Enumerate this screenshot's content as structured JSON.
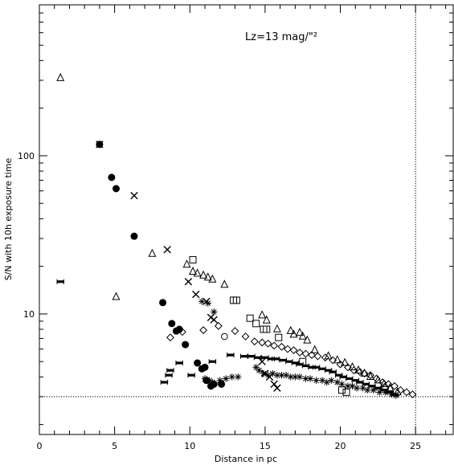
{
  "chart_data": {
    "type": "scatter",
    "title": "",
    "xlabel": "Distance in pc",
    "ylabel": "S/N with 10h exposure time",
    "xlim": [
      0,
      27.5
    ],
    "ylim": [
      1.73,
      900
    ],
    "yscale": "log",
    "grid": false,
    "legend": "none",
    "x_ticks": [
      0,
      5,
      10,
      15,
      20,
      25
    ],
    "x_tick_labels": [
      "0",
      "5",
      "10",
      "15",
      "20",
      "25"
    ],
    "y_major_ticks": [
      10,
      100
    ],
    "y_tick_labels": [
      "10",
      "100"
    ],
    "annotation": "Lz=13 mag/\"²",
    "reference_lines": {
      "vertical_x": 25,
      "horizontal_y": 3.0
    },
    "series": [
      {
        "marker": "triangle",
        "points": [
          [
            1.4,
            310
          ],
          [
            5.1,
            12.8
          ],
          [
            7.5,
            24
          ],
          [
            9.8,
            20.5
          ],
          [
            10.2,
            18.5
          ],
          [
            10.5,
            18
          ],
          [
            10.9,
            17.5
          ],
          [
            11.2,
            17
          ],
          [
            11.5,
            16.5
          ],
          [
            12.3,
            15.3
          ],
          [
            14.8,
            9.8
          ],
          [
            15.1,
            9.1
          ],
          [
            15.8,
            8
          ],
          [
            16.7,
            7.8
          ],
          [
            16.9,
            7.4
          ],
          [
            17.3,
            7.6
          ],
          [
            17.5,
            7.2
          ],
          [
            17.8,
            6.8
          ],
          [
            18.3,
            5.9
          ],
          [
            19.2,
            5.4
          ],
          [
            19.8,
            5.1
          ],
          [
            20.3,
            4.9
          ],
          [
            20.8,
            4.6
          ],
          [
            21.2,
            4.4
          ],
          [
            21.6,
            4.2
          ],
          [
            22.0,
            4.0
          ],
          [
            22.5,
            3.8
          ],
          [
            22.9,
            3.6
          ],
          [
            23.3,
            3.4
          ],
          [
            23.8,
            3.2
          ]
        ]
      },
      {
        "marker": "x",
        "points": [
          [
            4.0,
            118
          ],
          [
            6.3,
            56
          ],
          [
            8.5,
            25.5
          ],
          [
            9.9,
            16
          ],
          [
            10.4,
            13.3
          ],
          [
            11.1,
            12
          ],
          [
            11.4,
            9.5
          ],
          [
            11.6,
            9.2
          ],
          [
            14.8,
            5
          ],
          [
            15.0,
            4.2
          ],
          [
            15.3,
            4.0
          ],
          [
            15.6,
            3.6
          ],
          [
            15.8,
            3.4
          ]
        ]
      },
      {
        "marker": "circle-filled",
        "points": [
          [
            4.0,
            118
          ],
          [
            4.8,
            73
          ],
          [
            5.1,
            62
          ],
          [
            6.3,
            31
          ],
          [
            8.2,
            11.8
          ],
          [
            8.8,
            8.7
          ],
          [
            9.1,
            7.8
          ],
          [
            9.3,
            8
          ],
          [
            9.7,
            6.4
          ],
          [
            10.5,
            4.9
          ],
          [
            10.8,
            4.5
          ],
          [
            11.0,
            4.6
          ],
          [
            11.1,
            3.8
          ],
          [
            11.4,
            3.5
          ],
          [
            11.6,
            3.6
          ],
          [
            12.1,
            3.6
          ]
        ]
      },
      {
        "marker": "square",
        "points": [
          [
            10.2,
            22
          ],
          [
            12.9,
            12.2
          ],
          [
            13.1,
            12.2
          ],
          [
            14.0,
            9.4
          ],
          [
            14.4,
            8.7
          ],
          [
            14.9,
            8
          ],
          [
            15.1,
            8
          ],
          [
            15.9,
            7.1
          ],
          [
            17.5,
            5
          ],
          [
            20.1,
            3.3
          ],
          [
            20.4,
            3.2
          ]
        ]
      },
      {
        "marker": "diamond",
        "points": [
          [
            8.7,
            7.1
          ],
          [
            9.5,
            7.7
          ],
          [
            10.9,
            7.9
          ],
          [
            11.9,
            8.4
          ],
          [
            13.0,
            7.8
          ],
          [
            13.7,
            7.2
          ],
          [
            14.3,
            6.7
          ],
          [
            14.8,
            6.6
          ],
          [
            15.2,
            6.5
          ],
          [
            15.6,
            6.3
          ],
          [
            16.1,
            6.2
          ],
          [
            16.5,
            6.0
          ],
          [
            16.9,
            5.9
          ],
          [
            17.3,
            5.7
          ],
          [
            17.7,
            5.6
          ],
          [
            18.1,
            5.5
          ],
          [
            18.5,
            5.4
          ],
          [
            19.0,
            5.3
          ],
          [
            19.5,
            5.1
          ],
          [
            20.0,
            4.8
          ],
          [
            20.5,
            4.6
          ],
          [
            20.9,
            4.4
          ],
          [
            21.3,
            4.3
          ],
          [
            21.6,
            4.2
          ],
          [
            22.0,
            4.1
          ],
          [
            22.4,
            3.9
          ],
          [
            22.8,
            3.7
          ],
          [
            23.2,
            3.6
          ],
          [
            23.6,
            3.5
          ],
          [
            24.0,
            3.3
          ],
          [
            24.4,
            3.2
          ],
          [
            24.8,
            3.1
          ]
        ]
      },
      {
        "marker": "circle-open",
        "points": [
          [
            12.3,
            7.2
          ],
          [
            23.0,
            3.4
          ]
        ]
      },
      {
        "marker": "double-bar",
        "points": [
          [
            1.4,
            16
          ],
          [
            8.3,
            3.7
          ],
          [
            8.6,
            4.1
          ],
          [
            8.7,
            4.4
          ],
          [
            9.3,
            4.9
          ],
          [
            10.1,
            4.1
          ],
          [
            11.5,
            5
          ],
          [
            12.7,
            5.5
          ],
          [
            13.6,
            5.4
          ],
          [
            14.1,
            5.4
          ],
          [
            14.5,
            5.3
          ],
          [
            15.0,
            5.3
          ],
          [
            15.4,
            5.2
          ],
          [
            15.7,
            5.2
          ],
          [
            16.2,
            5.1
          ],
          [
            16.6,
            5.0
          ],
          [
            17.0,
            4.9
          ],
          [
            17.3,
            4.8
          ],
          [
            17.7,
            4.7
          ],
          [
            18.1,
            4.6
          ],
          [
            18.4,
            4.6
          ],
          [
            18.8,
            4.5
          ],
          [
            19.2,
            4.4
          ],
          [
            19.5,
            4.3
          ],
          [
            19.9,
            4.1
          ],
          [
            20.2,
            4.0
          ],
          [
            20.6,
            3.9
          ],
          [
            21.0,
            3.8
          ],
          [
            21.3,
            3.7
          ],
          [
            21.7,
            3.6
          ],
          [
            22.1,
            3.5
          ],
          [
            22.5,
            3.4
          ],
          [
            22.9,
            3.3
          ],
          [
            23.3,
            3.2
          ],
          [
            23.6,
            3.1
          ]
        ]
      },
      {
        "marker": "asterisk",
        "points": [
          [
            10.8,
            12
          ],
          [
            11.2,
            11.7
          ],
          [
            11.6,
            10.3
          ],
          [
            11.0,
            3.9
          ],
          [
            11.3,
            3.8
          ],
          [
            11.5,
            3.7
          ],
          [
            12.0,
            3.8
          ],
          [
            12.4,
            3.9
          ],
          [
            12.8,
            4.0
          ],
          [
            13.2,
            4.0
          ],
          [
            14.4,
            4.6
          ],
          [
            14.6,
            4.4
          ],
          [
            14.9,
            4.2
          ],
          [
            15.2,
            4.1
          ],
          [
            15.5,
            4.2
          ],
          [
            15.8,
            4.1
          ],
          [
            16.1,
            4.1
          ],
          [
            16.4,
            4.1
          ],
          [
            16.7,
            4.0
          ],
          [
            17.0,
            4.0
          ],
          [
            17.3,
            4.0
          ],
          [
            17.7,
            3.9
          ],
          [
            18.0,
            3.9
          ],
          [
            18.4,
            3.8
          ],
          [
            18.8,
            3.8
          ],
          [
            19.1,
            3.7
          ],
          [
            19.4,
            3.8
          ],
          [
            19.8,
            3.7
          ],
          [
            20.1,
            3.6
          ],
          [
            20.5,
            3.5
          ],
          [
            20.8,
            3.5
          ],
          [
            21.1,
            3.4
          ],
          [
            21.5,
            3.4
          ],
          [
            21.8,
            3.3
          ],
          [
            22.2,
            3.3
          ],
          [
            22.6,
            3.2
          ],
          [
            23.0,
            3.2
          ],
          [
            23.4,
            3.1
          ],
          [
            23.7,
            3.05
          ]
        ]
      }
    ]
  }
}
